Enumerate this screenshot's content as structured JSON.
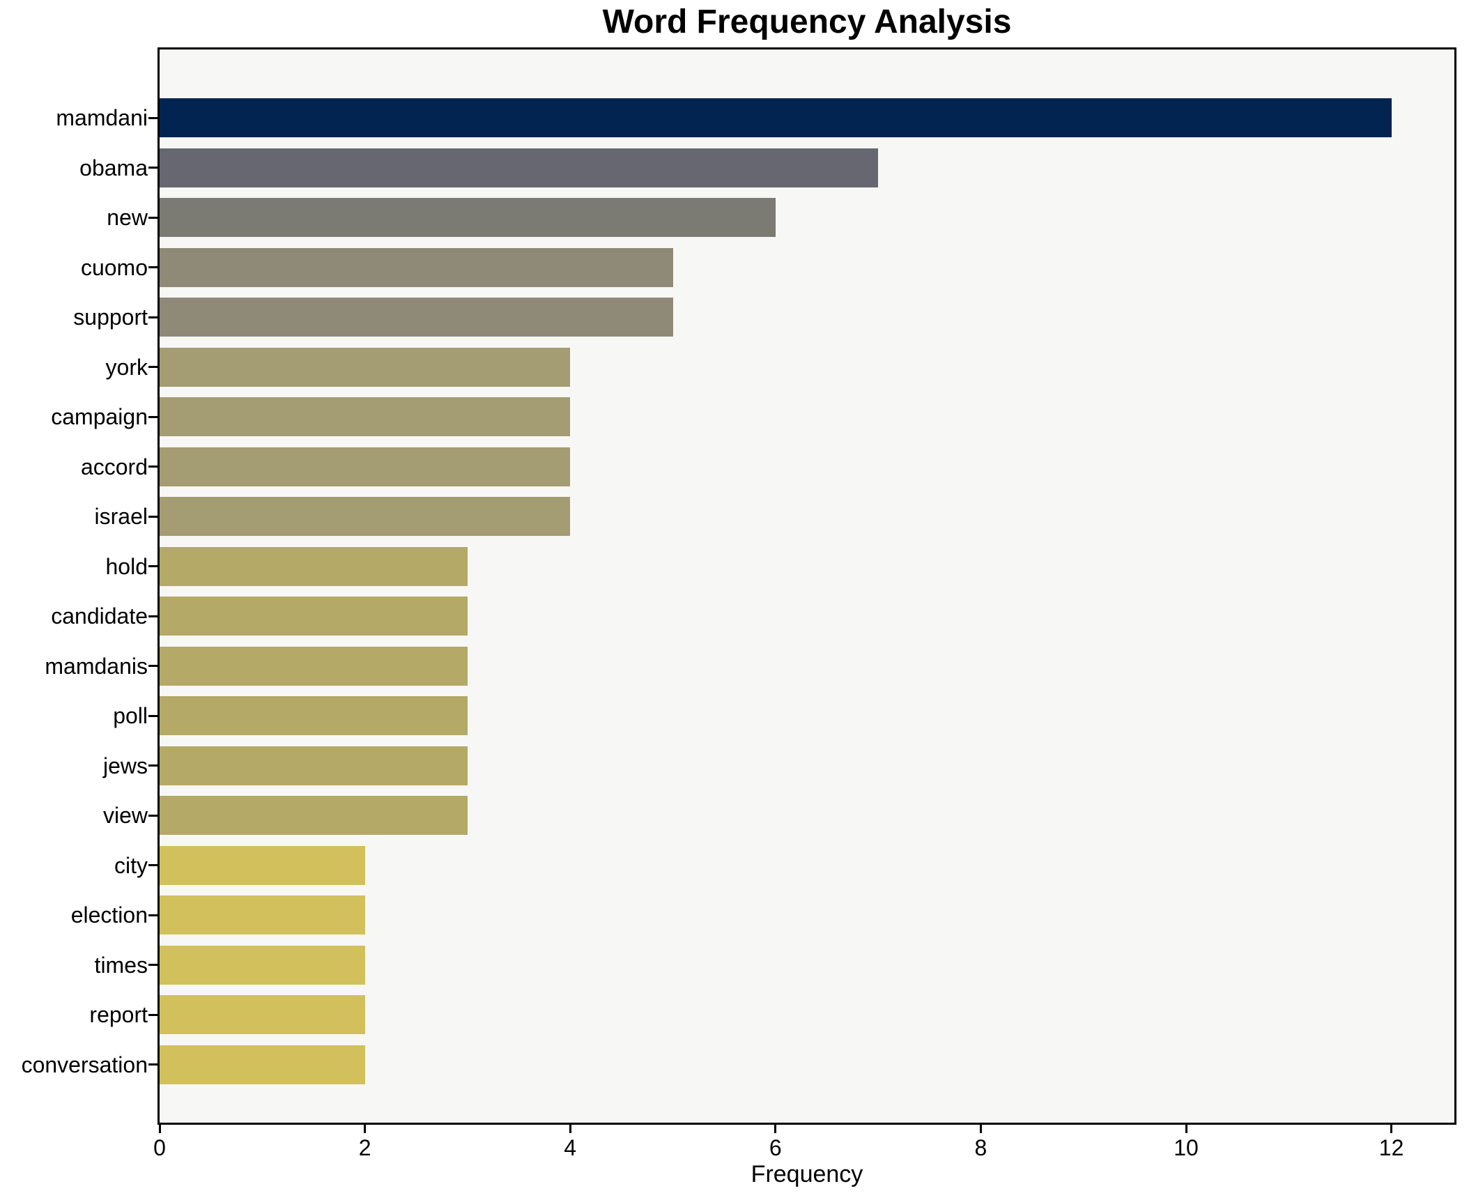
{
  "figure": {
    "background": "#ffffff",
    "plot_background": "#f7f7f5",
    "spine_color": "#000000",
    "text_color": "#000000"
  },
  "chart_data": {
    "type": "bar",
    "orientation": "horizontal",
    "title": "Word Frequency Analysis",
    "xlabel": "Frequency",
    "ylabel": "",
    "grid": false,
    "legend": "none",
    "xlim": [
      0,
      12.65
    ],
    "xticks": [
      0,
      2,
      4,
      6,
      8,
      10,
      12
    ],
    "categories": [
      "mamdani",
      "obama",
      "new",
      "cuomo",
      "support",
      "york",
      "campaign",
      "accord",
      "israel",
      "hold",
      "candidate",
      "mamdanis",
      "poll",
      "jews",
      "view",
      "city",
      "election",
      "times",
      "report",
      "conversation"
    ],
    "values": [
      12,
      7,
      6,
      5,
      5,
      4,
      4,
      4,
      4,
      3,
      3,
      3,
      3,
      3,
      3,
      2,
      2,
      2,
      2,
      2
    ],
    "bar_colors": [
      "#022451",
      "#666770",
      "#7b7a73",
      "#8f8a77",
      "#8f8a77",
      "#a49c72",
      "#a49c72",
      "#a49c72",
      "#a49c72",
      "#b4a966",
      "#b4a966",
      "#b4a966",
      "#b4a966",
      "#b4a966",
      "#b4a966",
      "#d2c05d",
      "#d2c05d",
      "#d2c05d",
      "#d2c05d",
      "#d2c05d"
    ]
  }
}
